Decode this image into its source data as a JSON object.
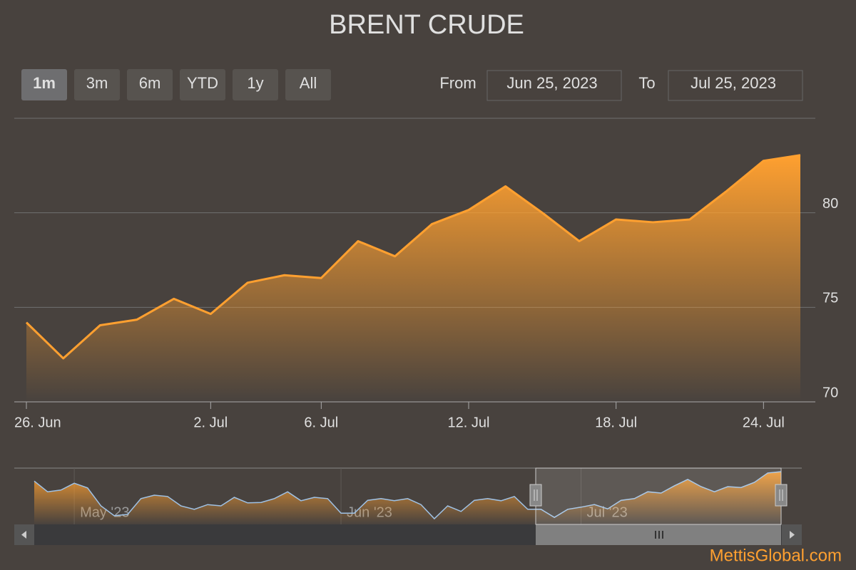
{
  "title": "BRENT CRUDE",
  "range_selector": {
    "buttons": [
      "1m",
      "3m",
      "6m",
      "YTD",
      "1y",
      "All"
    ],
    "from_label": "From",
    "from": "Jun 25, 2023",
    "to_label": "To",
    "to": "Jul 25, 2023"
  },
  "chart_data": {
    "type": "area",
    "categories": [
      "26. Jun",
      null,
      null,
      null,
      null,
      "2. Jul",
      null,
      null,
      "6. Jul",
      null,
      null,
      null,
      "12. Jul",
      null,
      null,
      null,
      "18. Jul",
      null,
      null,
      null,
      "24. Jul",
      null
    ],
    "values": [
      74.2,
      72.3,
      74.05,
      74.35,
      75.45,
      74.65,
      76.3,
      76.7,
      76.55,
      78.5,
      77.7,
      79.4,
      80.15,
      81.4,
      80.0,
      78.5,
      79.65,
      79.5,
      79.65,
      81.15,
      82.75,
      83.05
    ],
    "color": "#ffa030",
    "ylim": [
      70,
      85
    ],
    "yticks": [
      70,
      75,
      80
    ],
    "grid": true,
    "navigator": {
      "categories": [
        null,
        null,
        null,
        "May '23",
        null,
        null,
        null,
        null,
        null,
        null,
        null,
        null,
        null,
        null,
        null,
        null,
        null,
        null,
        null,
        null,
        null,
        null,
        null,
        "Jun '23",
        null,
        null,
        null,
        null,
        null,
        null,
        null,
        null,
        null,
        null,
        null,
        null,
        null,
        null,
        null,
        null,
        null,
        "Jul '23",
        null,
        null,
        null,
        null,
        null,
        null,
        null,
        null,
        null,
        null,
        null,
        null,
        null,
        null,
        null
      ],
      "values": [
        80.8,
        78.3,
        78.7,
        80.3,
        79.2,
        75,
        72.7,
        73,
        76.7,
        77.5,
        77.2,
        75,
        74.2,
        75.3,
        75,
        77,
        75.7,
        75.8,
        76.7,
        78.3,
        76.2,
        77,
        76.7,
        73.3,
        73.3,
        76.3,
        76.7,
        76.2,
        76.7,
        75.3,
        72,
        75,
        73.7,
        76.3,
        76.7,
        76.2,
        77.2,
        74.2,
        74.2,
        72.3,
        74.2,
        74.7,
        75.3,
        74.3,
        76.3,
        76.7,
        78.3,
        78,
        79.7,
        81.2,
        79.5,
        78.3,
        79.5,
        79.3,
        80.5,
        82.7,
        83
      ]
    }
  },
  "credit": "MettisGlobal.com"
}
